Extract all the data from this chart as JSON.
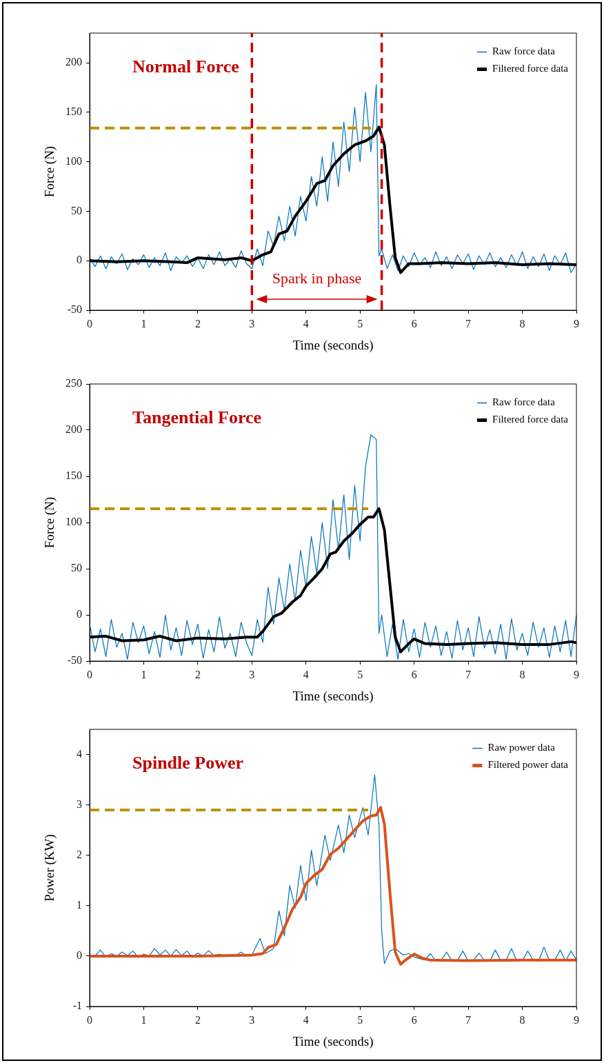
{
  "chart_data": [
    {
      "type": "line",
      "title": "Normal Force",
      "xlabel": "Time (seconds)",
      "ylabel": "Force (N)",
      "xlim": [
        0,
        9
      ],
      "xticks": [
        0,
        1,
        2,
        3,
        4,
        5,
        6,
        7,
        8,
        9
      ],
      "ylim": [
        -50,
        230
      ],
      "yticks": [
        -50,
        0,
        50,
        100,
        150,
        200
      ],
      "grid": false,
      "legend": "top right",
      "marker": "none",
      "series": [
        {
          "name": "Raw force data",
          "color": "#0072bd",
          "x": [
            0,
            0.1,
            0.2,
            0.3,
            0.4,
            0.5,
            0.6,
            0.7,
            0.8,
            0.9,
            1,
            1.1,
            1.2,
            1.3,
            1.4,
            1.5,
            1.6,
            1.7,
            1.8,
            1.9,
            2,
            2.1,
            2.2,
            2.3,
            2.4,
            2.5,
            2.6,
            2.7,
            2.8,
            2.9,
            3,
            3.1,
            3.2,
            3.3,
            3.4,
            3.5,
            3.6,
            3.7,
            3.8,
            3.9,
            4,
            4.1,
            4.2,
            4.3,
            4.4,
            4.5,
            4.6,
            4.7,
            4.8,
            4.9,
            5,
            5.1,
            5.2,
            5.3,
            5.35,
            5.4,
            5.5,
            5.6,
            5.7,
            5.8,
            5.9,
            6,
            6.1,
            6.2,
            6.3,
            6.4,
            6.5,
            6.6,
            6.7,
            6.8,
            6.9,
            7,
            7.1,
            7.2,
            7.3,
            7.4,
            7.5,
            7.6,
            7.7,
            7.8,
            7.9,
            8,
            8.1,
            8.2,
            8.3,
            8.4,
            8.5,
            8.6,
            8.7,
            8.8,
            8.9,
            9
          ],
          "values": [
            3,
            -6,
            5,
            -8,
            4,
            -3,
            7,
            -9,
            2,
            -4,
            6,
            -7,
            3,
            -5,
            8,
            -10,
            4,
            -2,
            5,
            -6,
            3,
            -8,
            6,
            -4,
            9,
            -5,
            2,
            -7,
            10,
            -3,
            -8,
            12,
            -5,
            30,
            15,
            45,
            20,
            55,
            25,
            65,
            40,
            85,
            55,
            105,
            60,
            120,
            75,
            140,
            90,
            155,
            100,
            170,
            110,
            178,
            5,
            12,
            -8,
            6,
            -10,
            5,
            -6,
            8,
            -4,
            3,
            -7,
            9,
            -5,
            4,
            -8,
            6,
            -3,
            7,
            -9,
            5,
            -4,
            8,
            -6,
            3,
            -7,
            6,
            -5,
            9,
            -8,
            4,
            -6,
            7,
            -10,
            5,
            -4,
            8,
            -12,
            -3
          ]
        },
        {
          "name": "Filtered force data",
          "color": "#000000",
          "x": [
            0,
            0.5,
            1,
            1.5,
            1.8,
            2,
            2.5,
            2.8,
            3,
            3.2,
            3.35,
            3.5,
            3.65,
            3.8,
            4,
            4.2,
            4.35,
            4.5,
            4.7,
            4.9,
            5.1,
            5.25,
            5.35,
            5.45,
            5.55,
            5.65,
            5.75,
            5.9,
            6.1,
            6.5,
            7,
            7.5,
            8,
            8.5,
            9
          ],
          "values": [
            0,
            -1,
            0,
            -1,
            -2,
            3,
            1,
            3,
            0,
            6,
            9,
            27,
            30,
            45,
            60,
            78,
            81,
            96,
            108,
            117,
            121,
            126,
            135,
            117,
            57,
            3,
            -12,
            -3,
            -3,
            -2,
            -3,
            -2,
            -4,
            -3,
            -4
          ]
        },
        {
          "color": "#bf9000",
          "line_style": "dashed",
          "x": [
            0,
            5.2
          ],
          "values": [
            134,
            134
          ]
        }
      ],
      "ref_lines": [
        {
          "axis": "x",
          "value": 3,
          "color": "#cc0000",
          "line_style": "dashed"
        },
        {
          "axis": "x",
          "value": 5.4,
          "color": "#cc0000",
          "line_style": "dashed"
        }
      ],
      "annotations": [
        "Spark in phase"
      ]
    },
    {
      "type": "line",
      "title": "Tangential Force",
      "xlabel": "Time (seconds)",
      "ylabel": "Force (N)",
      "xlim": [
        0,
        9
      ],
      "xticks": [
        0,
        1,
        2,
        3,
        4,
        5,
        6,
        7,
        8,
        9
      ],
      "ylim": [
        -50,
        250
      ],
      "yticks": [
        -50,
        0,
        50,
        100,
        150,
        200,
        250
      ],
      "grid": false,
      "legend": "top right",
      "marker": "none",
      "series": [
        {
          "name": "Raw force data",
          "color": "#0072bd",
          "x": [
            0,
            0.1,
            0.2,
            0.3,
            0.4,
            0.5,
            0.6,
            0.7,
            0.8,
            0.9,
            1,
            1.1,
            1.2,
            1.3,
            1.4,
            1.5,
            1.6,
            1.7,
            1.8,
            1.9,
            2,
            2.1,
            2.2,
            2.3,
            2.4,
            2.5,
            2.6,
            2.7,
            2.8,
            2.9,
            3,
            3.1,
            3.2,
            3.3,
            3.4,
            3.5,
            3.6,
            3.7,
            3.8,
            3.9,
            4,
            4.1,
            4.2,
            4.3,
            4.4,
            4.5,
            4.6,
            4.7,
            4.8,
            4.9,
            5,
            5.1,
            5.2,
            5.3,
            5.35,
            5.4,
            5.5,
            5.6,
            5.7,
            5.8,
            5.9,
            6,
            6.1,
            6.2,
            6.3,
            6.4,
            6.5,
            6.6,
            6.7,
            6.8,
            6.9,
            7,
            7.1,
            7.2,
            7.3,
            7.4,
            7.5,
            7.6,
            7.7,
            7.8,
            7.9,
            8,
            8.1,
            8.2,
            8.3,
            8.4,
            8.5,
            8.6,
            8.7,
            8.8,
            8.9,
            9
          ],
          "values": [
            -10,
            -40,
            -15,
            -45,
            -5,
            -35,
            -20,
            -48,
            -8,
            -30,
            -12,
            -42,
            -18,
            -46,
            0,
            -38,
            -14,
            -44,
            -6,
            -32,
            -10,
            -47,
            -16,
            -40,
            -2,
            -36,
            -20,
            -45,
            -8,
            -30,
            -44,
            -5,
            -30,
            30,
            -10,
            40,
            5,
            55,
            15,
            70,
            30,
            85,
            45,
            100,
            50,
            125,
            70,
            130,
            60,
            140,
            80,
            160,
            195,
            190,
            -20,
            0,
            -45,
            -10,
            -48,
            -5,
            -40,
            -15,
            -46,
            -8,
            -35,
            -12,
            -44,
            -18,
            -47,
            -6,
            -38,
            -14,
            -45,
            -2,
            -36,
            -16,
            -42,
            -10,
            -48,
            -4,
            -38,
            -20,
            -44,
            -8,
            -35,
            -14,
            -46,
            -12,
            -40,
            -6,
            -45,
            0
          ]
        },
        {
          "name": "Filtered force data",
          "color": "#000000",
          "x": [
            0,
            0.3,
            0.6,
            1,
            1.3,
            1.6,
            2,
            2.5,
            2.9,
            3.1,
            3.2,
            3.4,
            3.55,
            3.75,
            3.9,
            4,
            4.15,
            4.3,
            4.45,
            4.55,
            4.7,
            4.85,
            5,
            5.15,
            5.25,
            5.35,
            5.45,
            5.55,
            5.65,
            5.75,
            5.9,
            6,
            6.2,
            6.6,
            7,
            7.5,
            8,
            8.5,
            8.9,
            9
          ],
          "values": [
            -24,
            -23,
            -28,
            -27,
            -23,
            -28,
            -25,
            -26,
            -24,
            -24,
            -18,
            -2,
            2,
            14,
            21,
            31,
            40,
            50,
            66,
            68,
            80,
            88,
            98,
            106,
            106,
            115,
            92,
            34,
            -24,
            -40,
            -31,
            -26,
            -31,
            -32,
            -31,
            -30,
            -32,
            -32,
            -29,
            -30
          ]
        },
        {
          "color": "#bf9000",
          "line_style": "dashed",
          "x": [
            0,
            5.15
          ],
          "values": [
            115,
            115
          ]
        }
      ]
    },
    {
      "type": "line",
      "title": "Spindle Power",
      "xlabel": "Time (seconds)",
      "ylabel": "Power (KW)",
      "xlim": [
        0,
        9
      ],
      "xticks": [
        0,
        1,
        2,
        3,
        4,
        5,
        6,
        7,
        8,
        9
      ],
      "ylim": [
        -1,
        4.5
      ],
      "yticks": [
        -1,
        0,
        1,
        2,
        3,
        4
      ],
      "grid": false,
      "legend": "top right",
      "marker": "none",
      "series": [
        {
          "name": "Raw power data",
          "color": "#0072bd",
          "x": [
            0,
            0.1,
            0.2,
            0.3,
            0.4,
            0.5,
            0.6,
            0.7,
            0.8,
            0.9,
            1,
            1.1,
            1.2,
            1.3,
            1.4,
            1.5,
            1.6,
            1.7,
            1.8,
            1.9,
            2,
            2.1,
            2.2,
            2.3,
            2.4,
            2.5,
            2.6,
            2.7,
            2.8,
            2.9,
            3,
            3.15,
            3.25,
            3.4,
            3.5,
            3.6,
            3.7,
            3.8,
            3.9,
            4,
            4.1,
            4.2,
            4.35,
            4.45,
            4.6,
            4.7,
            4.8,
            4.9,
            5.05,
            5.15,
            5.27,
            5.35,
            5.4,
            5.45,
            5.55,
            5.65,
            5.8,
            5.9,
            6,
            6.1,
            6.2,
            6.3,
            6.4,
            6.5,
            6.6,
            6.7,
            6.8,
            6.9,
            7,
            7.1,
            7.2,
            7.3,
            7.4,
            7.5,
            7.6,
            7.7,
            7.8,
            7.9,
            8,
            8.1,
            8.2,
            8.3,
            8.4,
            8.5,
            8.6,
            8.7,
            8.8,
            8.9,
            9
          ],
          "values": [
            0.02,
            0,
            0.12,
            -0.02,
            0.05,
            0,
            0.08,
            0.01,
            0.1,
            -0.03,
            0.04,
            0,
            0.15,
            0.02,
            0.12,
            0,
            0.13,
            0.01,
            0.1,
            -0.02,
            0.06,
            0,
            0.11,
            0.01,
            0.04,
            0,
            0.02,
            0.01,
            0.08,
            0,
            0.02,
            0.35,
            0.05,
            0.15,
            0.9,
            0.4,
            1.4,
            0.95,
            1.8,
            1.1,
            2.1,
            1.4,
            2.4,
            1.9,
            2.6,
            2.05,
            2.8,
            2.35,
            2.95,
            2.4,
            3.6,
            2.6,
            0.5,
            -0.15,
            0.1,
            0.15,
            0.02,
            0.05,
            -0.02,
            -0.05,
            -0.08,
            0.05,
            -0.1,
            -0.08,
            0.08,
            -0.1,
            -0.09,
            0.1,
            -0.1,
            -0.08,
            0.06,
            -0.09,
            -0.1,
            0.12,
            -0.09,
            -0.08,
            0.15,
            -0.1,
            -0.09,
            0.1,
            -0.08,
            -0.1,
            0.18,
            -0.09,
            -0.08,
            0.12,
            -0.1,
            0.1,
            -0.08
          ]
        },
        {
          "name": "Filtered power data",
          "color": "#d95319",
          "x": [
            0,
            1,
            2,
            3,
            3.2,
            3.3,
            3.45,
            3.6,
            3.75,
            3.9,
            4,
            4.15,
            4.3,
            4.45,
            4.6,
            4.75,
            4.9,
            5.05,
            5.2,
            5.3,
            5.38,
            5.45,
            5.55,
            5.65,
            5.75,
            5.85,
            6,
            6.15,
            6.3,
            7,
            8,
            9
          ],
          "values": [
            0,
            0,
            0,
            0.02,
            0.05,
            0.17,
            0.23,
            0.56,
            0.93,
            1.17,
            1.44,
            1.6,
            1.72,
            2.02,
            2.14,
            2.32,
            2.5,
            2.68,
            2.78,
            2.8,
            2.95,
            2.62,
            1.29,
            0.08,
            -0.16,
            -0.07,
            0.04,
            -0.04,
            -0.08,
            -0.09,
            -0.08,
            -0.08
          ]
        },
        {
          "color": "#bf9000",
          "line_style": "dashed",
          "x": [
            0,
            5.15
          ],
          "values": [
            2.9,
            2.9
          ]
        }
      ]
    }
  ]
}
